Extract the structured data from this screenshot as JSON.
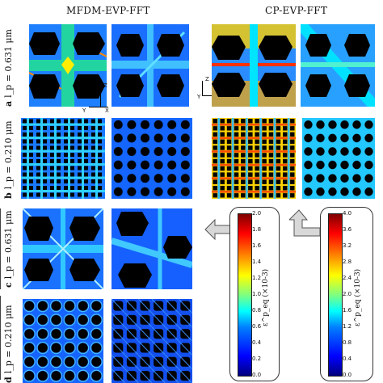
{
  "headings": {
    "left": "MFDM-EVP-FFT",
    "right": "CP-EVP-FFT"
  },
  "rows": [
    {
      "letter": "a",
      "lp": "l_p = 0.631 μm"
    },
    {
      "letter": "b",
      "lp": "l_p = 0.210 μm"
    },
    {
      "letter": "c",
      "lp": "l_p = 0.631 μm"
    },
    {
      "letter": "d",
      "lp": "l_p = 0.210 μm"
    }
  ],
  "axes": {
    "z": "Z",
    "y": "Y",
    "x": "X"
  },
  "colorbars": [
    {
      "label": "ε^p_eq (×10-3)",
      "ticks": [
        "2.0",
        "1.8",
        "1.6",
        "1.4",
        "1.2",
        "1.0",
        "0.8",
        "0.6",
        "0.4",
        "0.2",
        "0.0"
      ]
    },
    {
      "label": "ε^p_eq (×10-3)",
      "ticks": [
        "4.0",
        "3.6",
        "3.2",
        "2.8",
        "2.4",
        "2.0",
        "1.6",
        "1.2",
        "0.8",
        "0.4",
        "0.0"
      ]
    }
  ],
  "colors": {
    "field_low": "#00007f",
    "field_mid": "#1e7fff",
    "hot": "#ffff00",
    "hole": "#000000"
  }
}
